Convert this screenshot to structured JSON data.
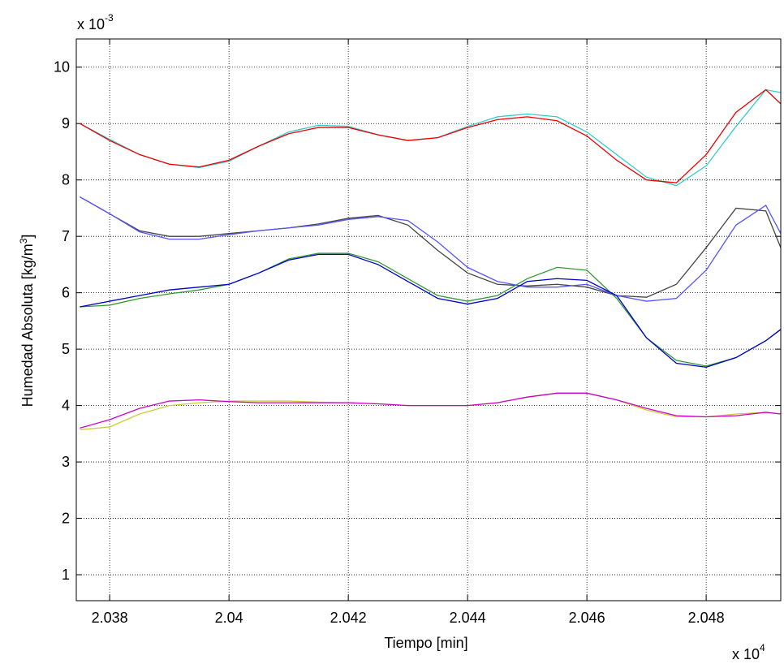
{
  "chart_data": {
    "type": "line",
    "xlabel": "Tiempo [min]",
    "ylabel": {
      "text": "Humedad Absoluta [kg/m",
      "superscript": "3",
      "suffix": "]"
    },
    "x_multiplier": {
      "base": "x 10",
      "exponent": "4"
    },
    "y_multiplier": {
      "base": "x 10",
      "exponent": "-3"
    },
    "xlim": [
      2.03744,
      2.04925
    ],
    "ylim": [
      0.54,
      10.5
    ],
    "xticks": [
      2.038,
      2.04,
      2.042,
      2.044,
      2.046,
      2.048
    ],
    "yticks": [
      1,
      2,
      3,
      4,
      5,
      6,
      7,
      8,
      9,
      10
    ],
    "grid": true,
    "x": [
      2.0375,
      2.038,
      2.0385,
      2.039,
      2.0395,
      2.04,
      2.0405,
      2.041,
      2.0415,
      2.042,
      2.0425,
      2.043,
      2.0435,
      2.044,
      2.0445,
      2.045,
      2.0455,
      2.046,
      2.0465,
      2.047,
      2.0475,
      2.048,
      2.0485,
      2.049,
      2.04925
    ],
    "series": [
      {
        "color": "#33cccc",
        "values": [
          9.0,
          8.72,
          8.45,
          8.28,
          8.22,
          8.33,
          8.6,
          8.85,
          8.97,
          8.95,
          8.8,
          8.7,
          8.75,
          8.95,
          9.12,
          9.17,
          9.12,
          8.85,
          8.45,
          8.05,
          7.9,
          8.25,
          8.95,
          9.6,
          9.55
        ]
      },
      {
        "color": "#ee0000",
        "values": [
          9.0,
          8.7,
          8.45,
          8.28,
          8.23,
          8.35,
          8.6,
          8.82,
          8.93,
          8.93,
          8.8,
          8.7,
          8.75,
          8.93,
          9.07,
          9.12,
          9.05,
          8.78,
          8.35,
          8.0,
          7.95,
          8.45,
          9.2,
          9.6,
          9.35
        ]
      },
      {
        "color": "#444444",
        "values": [
          7.7,
          7.4,
          7.1,
          7.0,
          7.0,
          7.05,
          7.1,
          7.15,
          7.22,
          7.32,
          7.37,
          7.2,
          6.75,
          6.35,
          6.15,
          6.12,
          6.15,
          6.1,
          5.95,
          5.92,
          6.15,
          6.8,
          7.5,
          7.45,
          6.8
        ]
      },
      {
        "color": "#5555ff",
        "values": [
          7.7,
          7.4,
          7.08,
          6.95,
          6.95,
          7.03,
          7.1,
          7.15,
          7.2,
          7.3,
          7.35,
          7.28,
          6.9,
          6.45,
          6.2,
          6.1,
          6.1,
          6.15,
          5.95,
          5.85,
          5.9,
          6.4,
          7.2,
          7.55,
          7.05
        ]
      },
      {
        "color": "#339933",
        "values": [
          5.75,
          5.78,
          5.9,
          5.98,
          6.05,
          6.15,
          6.35,
          6.6,
          6.7,
          6.7,
          6.55,
          6.25,
          5.95,
          5.85,
          5.95,
          6.25,
          6.45,
          6.4,
          5.9,
          5.2,
          4.8,
          4.7,
          4.85,
          5.15,
          5.35
        ]
      },
      {
        "color": "#0000cc",
        "values": [
          5.75,
          5.85,
          5.95,
          6.05,
          6.1,
          6.15,
          6.35,
          6.58,
          6.68,
          6.68,
          6.5,
          6.2,
          5.9,
          5.8,
          5.9,
          6.2,
          6.25,
          6.22,
          5.95,
          5.2,
          4.75,
          4.68,
          4.85,
          5.15,
          5.35
        ]
      },
      {
        "color": "#cccc33",
        "values": [
          3.57,
          3.62,
          3.85,
          4.0,
          4.05,
          4.08,
          4.08,
          4.08,
          4.06,
          4.05,
          4.03,
          4.0,
          4.0,
          4.0,
          4.05,
          4.15,
          4.22,
          4.22,
          4.1,
          3.92,
          3.8,
          3.8,
          3.85,
          3.88,
          3.85
        ]
      },
      {
        "color": "#cc00cc",
        "values": [
          3.6,
          3.75,
          3.95,
          4.08,
          4.1,
          4.07,
          4.05,
          4.05,
          4.05,
          4.05,
          4.03,
          4.0,
          4.0,
          4.0,
          4.05,
          4.15,
          4.22,
          4.22,
          4.1,
          3.95,
          3.82,
          3.8,
          3.82,
          3.88,
          3.85
        ]
      }
    ]
  }
}
